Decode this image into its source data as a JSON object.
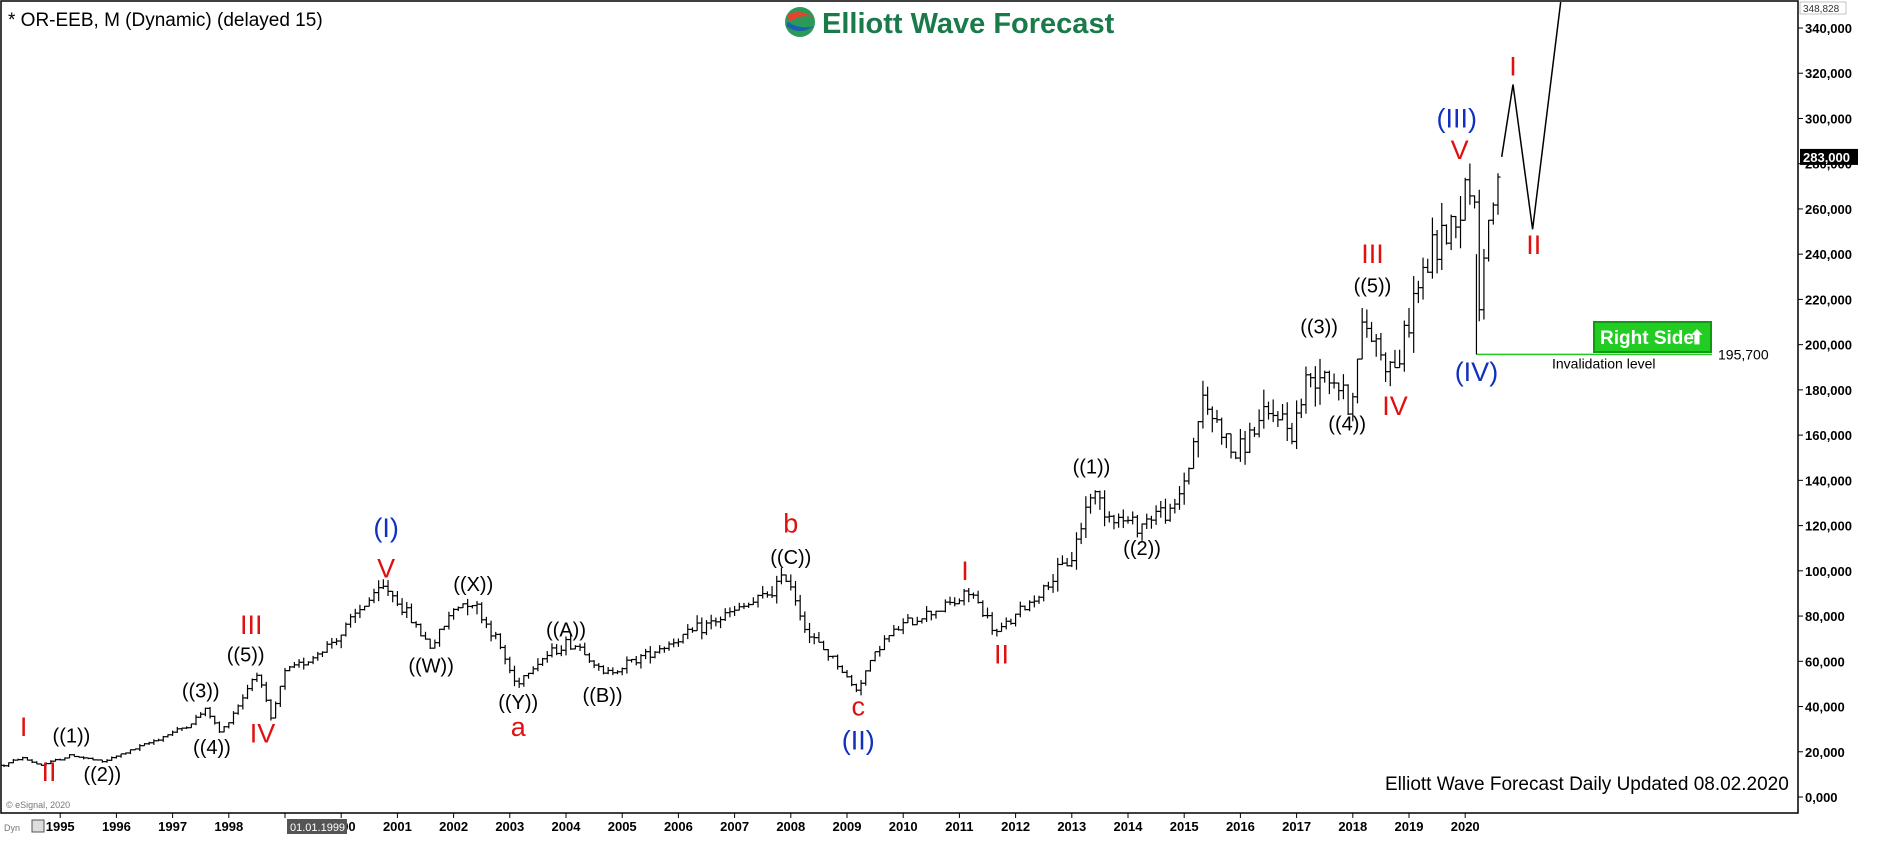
{
  "header": {
    "title": "* OR-EEB, M (Dynamic) (delayed 15)",
    "brand": "Elliott Wave Forecast"
  },
  "footer": {
    "updated": "Elliott Wave Forecast Daily Updated 08.02.2020",
    "copyright": "© eSignal, 2020",
    "dyn": "Dyn",
    "cursor_date": "01.01.1999"
  },
  "colors": {
    "background": "#ffffff",
    "bars": "#000000",
    "red": "#e01010",
    "blue": "#1030c0",
    "black": "#000000",
    "right_side_box": "#22cc22",
    "brand_green": "#1a7a4a"
  },
  "chart_data": {
    "type": "ohlc",
    "instrument": "OR-EEB",
    "interval": "M",
    "x_range": [
      1994.0,
      2021.7
    ],
    "y_range": [
      0,
      348828
    ],
    "y_axis_top_label": "348,828",
    "last_price": 283000,
    "last_price_label": "283,000",
    "yticks": [
      0,
      20000,
      40000,
      60000,
      80000,
      100000,
      120000,
      140000,
      160000,
      180000,
      200000,
      220000,
      240000,
      260000,
      280000,
      300000,
      320000,
      340000
    ],
    "ytick_labels": [
      "0,000",
      "20,000",
      "40,000",
      "60,000",
      "80,000",
      "100,000",
      "120,000",
      "140,000",
      "160,000",
      "180,000",
      "200,000",
      "220,000",
      "240,000",
      "260,000",
      "280,000",
      "300,000",
      "320,000",
      "340,000"
    ],
    "xticks": [
      "1995",
      "1996",
      "1997",
      "1998",
      "1999",
      "2000",
      "2001",
      "2002",
      "2003",
      "2004",
      "2005",
      "2006",
      "2007",
      "2008",
      "2009",
      "2010",
      "2011",
      "2012",
      "2013",
      "2014",
      "2015",
      "2016",
      "2017",
      "2018",
      "2019",
      "2020"
    ],
    "price_path": [
      [
        1994.0,
        14000
      ],
      [
        1994.3,
        17500
      ],
      [
        1994.65,
        14000
      ],
      [
        1995.2,
        18500
      ],
      [
        1995.75,
        15500
      ],
      [
        1996.5,
        23000
      ],
      [
        1997.3,
        32000
      ],
      [
        1997.6,
        39000
      ],
      [
        1997.85,
        28000
      ],
      [
        1998.2,
        42000
      ],
      [
        1998.5,
        56000
      ],
      [
        1998.75,
        34000
      ],
      [
        1999.0,
        55000
      ],
      [
        1999.5,
        62000
      ],
      [
        2000.0,
        72000
      ],
      [
        2000.4,
        85000
      ],
      [
        2000.8,
        93000
      ],
      [
        2001.2,
        80000
      ],
      [
        2001.6,
        66000
      ],
      [
        2002.0,
        83000
      ],
      [
        2002.3,
        88000
      ],
      [
        2002.8,
        68000
      ],
      [
        2003.1,
        50000
      ],
      [
        2003.5,
        60000
      ],
      [
        2004.0,
        68000
      ],
      [
        2004.3,
        66000
      ],
      [
        2004.65,
        54000
      ],
      [
        2005.0,
        58000
      ],
      [
        2005.5,
        64000
      ],
      [
        2006.0,
        70000
      ],
      [
        2006.5,
        76000
      ],
      [
        2007.0,
        82000
      ],
      [
        2007.5,
        88000
      ],
      [
        2007.95,
        98000
      ],
      [
        2008.3,
        72000
      ],
      [
        2008.8,
        60000
      ],
      [
        2009.15,
        47000
      ],
      [
        2009.6,
        68000
      ],
      [
        2010.0,
        76000
      ],
      [
        2010.5,
        82000
      ],
      [
        2011.0,
        87000
      ],
      [
        2011.2,
        91000
      ],
      [
        2011.65,
        72000
      ],
      [
        2012.0,
        80000
      ],
      [
        2012.5,
        92000
      ],
      [
        2013.0,
        106000
      ],
      [
        2013.35,
        136000
      ],
      [
        2013.7,
        124000
      ],
      [
        2014.2,
        120000
      ],
      [
        2014.5,
        126000
      ],
      [
        2014.8,
        125000
      ],
      [
        2015.1,
        148000
      ],
      [
        2015.3,
        175000
      ],
      [
        2015.6,
        165000
      ],
      [
        2015.9,
        150000
      ],
      [
        2016.3,
        165000
      ],
      [
        2016.7,
        170000
      ],
      [
        2016.9,
        160000
      ],
      [
        2017.2,
        185000
      ],
      [
        2017.5,
        190000
      ],
      [
        2017.8,
        180000
      ],
      [
        2017.95,
        172000
      ],
      [
        2018.2,
        210000
      ],
      [
        2018.45,
        200000
      ],
      [
        2018.65,
        190000
      ],
      [
        2018.85,
        195000
      ],
      [
        2019.1,
        222000
      ],
      [
        2019.4,
        240000
      ],
      [
        2019.7,
        252000
      ],
      [
        2019.95,
        262000
      ],
      [
        2020.05,
        278000
      ],
      [
        2020.15,
        268000
      ],
      [
        2020.2,
        240000
      ],
      [
        2020.25,
        220000
      ],
      [
        2020.4,
        252000
      ],
      [
        2020.55,
        270000
      ],
      [
        2020.65,
        283000
      ]
    ],
    "projection": [
      [
        2020.65,
        283000
      ],
      [
        2020.85,
        315000
      ],
      [
        2021.2,
        251000
      ],
      [
        2021.7,
        352000
      ]
    ],
    "invalidation": {
      "level": 195700,
      "label": "195,700",
      "text": "Invalidation level",
      "badge": "Right Side",
      "badge_arrow": "⬆"
    },
    "wave_labels": [
      {
        "text": "I",
        "x": 1994.35,
        "y": 27000,
        "color": "red",
        "size": 27
      },
      {
        "text": "II",
        "x": 1994.8,
        "y": 7000,
        "color": "red",
        "size": 27
      },
      {
        "text": "((1))",
        "x": 1995.2,
        "y": 24000,
        "color": "black",
        "size": 20
      },
      {
        "text": "((2))",
        "x": 1995.75,
        "y": 7000,
        "color": "black",
        "size": 20
      },
      {
        "text": "((3))",
        "x": 1997.5,
        "y": 44000,
        "color": "black",
        "size": 20
      },
      {
        "text": "((4))",
        "x": 1997.7,
        "y": 19000,
        "color": "black",
        "size": 20
      },
      {
        "text": "((5))",
        "x": 1998.3,
        "y": 60000,
        "color": "black",
        "size": 20
      },
      {
        "text": "III",
        "x": 1998.4,
        "y": 72000,
        "color": "red",
        "size": 27
      },
      {
        "text": "IV",
        "x": 1998.6,
        "y": 24000,
        "color": "red",
        "size": 27
      },
      {
        "text": "(I)",
        "x": 2000.8,
        "y": 115000,
        "color": "blue",
        "size": 27
      },
      {
        "text": "V",
        "x": 2000.8,
        "y": 97000,
        "color": "red",
        "size": 27
      },
      {
        "text": "((X))",
        "x": 2002.35,
        "y": 91000,
        "color": "black",
        "size": 20
      },
      {
        "text": "((W))",
        "x": 2001.6,
        "y": 55000,
        "color": "black",
        "size": 20
      },
      {
        "text": "((Y))",
        "x": 2003.15,
        "y": 39000,
        "color": "black",
        "size": 20
      },
      {
        "text": "a",
        "x": 2003.15,
        "y": 27000,
        "color": "red",
        "size": 27
      },
      {
        "text": "((A))",
        "x": 2004.0,
        "y": 71000,
        "color": "black",
        "size": 20
      },
      {
        "text": "((B))",
        "x": 2004.65,
        "y": 42000,
        "color": "black",
        "size": 20
      },
      {
        "text": "b",
        "x": 2008.0,
        "y": 117000,
        "color": "red",
        "size": 27
      },
      {
        "text": "((C))",
        "x": 2008.0,
        "y": 103000,
        "color": "black",
        "size": 20
      },
      {
        "text": "c",
        "x": 2009.2,
        "y": 36000,
        "color": "red",
        "size": 27
      },
      {
        "text": "(II)",
        "x": 2009.2,
        "y": 21000,
        "color": "blue",
        "size": 27
      },
      {
        "text": "I",
        "x": 2011.1,
        "y": 96000,
        "color": "red",
        "size": 27
      },
      {
        "text": "II",
        "x": 2011.75,
        "y": 59000,
        "color": "red",
        "size": 27
      },
      {
        "text": "((1))",
        "x": 2013.35,
        "y": 143000,
        "color": "black",
        "size": 20
      },
      {
        "text": "((2))",
        "x": 2014.25,
        "y": 107000,
        "color": "black",
        "size": 20
      },
      {
        "text": "((3))",
        "x": 2017.4,
        "y": 205000,
        "color": "black",
        "size": 20
      },
      {
        "text": "((4))",
        "x": 2017.9,
        "y": 162000,
        "color": "black",
        "size": 20
      },
      {
        "text": "((5))",
        "x": 2018.35,
        "y": 223000,
        "color": "black",
        "size": 20
      },
      {
        "text": "III",
        "x": 2018.35,
        "y": 236000,
        "color": "red",
        "size": 27
      },
      {
        "text": "IV",
        "x": 2018.75,
        "y": 169000,
        "color": "red",
        "size": 27
      },
      {
        "text": "(III)",
        "x": 2019.85,
        "y": 296000,
        "color": "blue",
        "size": 27
      },
      {
        "text": "V",
        "x": 2019.9,
        "y": 282000,
        "color": "red",
        "size": 27
      },
      {
        "text": "(IV)",
        "x": 2020.2,
        "y": 184000,
        "color": "blue",
        "size": 27
      },
      {
        "text": "I",
        "x": 2020.85,
        "y": 319000,
        "color": "red",
        "size": 27
      },
      {
        "text": "II",
        "x": 2021.22,
        "y": 240000,
        "color": "red",
        "size": 27
      }
    ]
  }
}
